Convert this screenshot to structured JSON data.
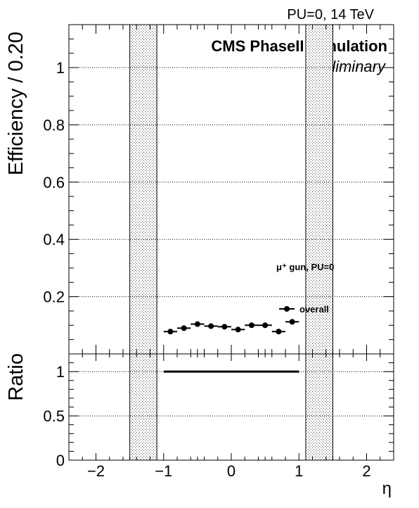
{
  "header": {
    "run_info": "PU=0, 14 TeV",
    "experiment": "CMS PhaseII Simulation",
    "status": "Preliminary"
  },
  "legend": {
    "sample": "μ⁺ gun, PU=0",
    "entry": "overall"
  },
  "chart_data": [
    {
      "type": "scatter",
      "panel": "main",
      "ylabel": "Efficiency / 0.20",
      "xlim": [
        -2.4,
        2.4
      ],
      "ylim": [
        0,
        1.15
      ],
      "grid": true,
      "yticks": [
        0.2,
        0.4,
        0.6,
        0.8,
        1
      ],
      "ytick_labels": [
        "0.2",
        "0.4",
        "0.6",
        "0.8",
        "1"
      ],
      "shaded_bands": [
        [
          -1.5,
          -1.1
        ],
        [
          1.1,
          1.5
        ]
      ],
      "series": [
        {
          "name": "overall",
          "x": [
            -0.9,
            -0.7,
            -0.5,
            -0.3,
            -0.1,
            0.1,
            0.3,
            0.5,
            0.7,
            0.9
          ],
          "xerr": 0.1,
          "y": [
            0.078,
            0.09,
            0.104,
            0.097,
            0.095,
            0.085,
            0.1,
            0.1,
            0.078,
            0.112
          ]
        }
      ]
    },
    {
      "type": "line",
      "panel": "ratio",
      "ylabel": "Ratio",
      "xlabel": "η",
      "xlim": [
        -2.4,
        2.4
      ],
      "ylim": [
        0,
        1.2
      ],
      "grid": true,
      "yticks": [
        0,
        0.5,
        1
      ],
      "ytick_labels": [
        "0",
        "0.5",
        "1"
      ],
      "xticks": [
        -2,
        -1,
        0,
        1,
        2
      ],
      "xtick_labels": [
        "−2",
        "−1",
        "0",
        "1",
        "2"
      ],
      "shaded_bands": [
        [
          -1.5,
          -1.1
        ],
        [
          1.1,
          1.5
        ]
      ],
      "series": [
        {
          "x": [
            -1.0,
            1.0
          ],
          "y": [
            1,
            1
          ]
        }
      ]
    }
  ]
}
